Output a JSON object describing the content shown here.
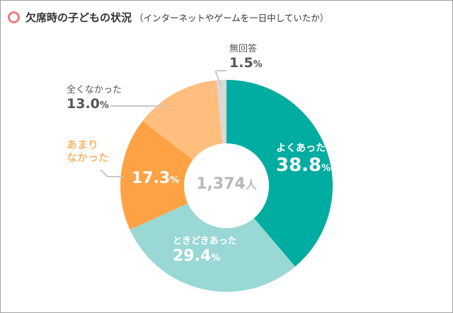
{
  "title": "欠席時の子どもの状況",
  "subtitle": "（インターネットやゲームを一日中していたか）",
  "chart_data": {
    "type": "pie",
    "donut": true,
    "total_label": "1,374",
    "total_unit": "人",
    "unit": "%",
    "slices": [
      {
        "label": "よくあった",
        "value": 38.8,
        "value_text": "38.8",
        "color": "#00ada0"
      },
      {
        "label": "ときどきあった",
        "value": 29.4,
        "value_text": "29.4",
        "color": "#99d8d4"
      },
      {
        "label1": "あまり",
        "label2": "なかった",
        "value": 17.3,
        "value_text": "17.3",
        "color": "#ffa245"
      },
      {
        "label": "全くなかった",
        "value": 13.0,
        "value_text": "13.0",
        "color": "#ffbe7d"
      },
      {
        "label": "無回答",
        "value": 1.5,
        "value_text": "1.5",
        "color": "#d9d9d9"
      }
    ]
  }
}
